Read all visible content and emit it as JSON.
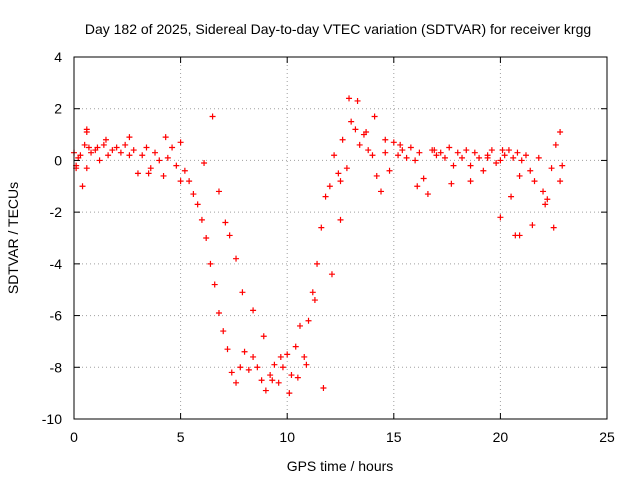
{
  "chart_data": {
    "type": "scatter",
    "title": "Day 182 of 2025, Sidereal Day-to-day VTEC variation (SDTVAR) for receiver krgg",
    "xlabel": "GPS time / hours",
    "ylabel": "SDTVAR / TECUs",
    "xlim": [
      0,
      25
    ],
    "ylim": [
      -10,
      4
    ],
    "xticks": [
      0,
      5,
      10,
      15,
      20,
      25
    ],
    "yticks": [
      -10,
      -8,
      -6,
      -4,
      -2,
      0,
      2,
      4
    ],
    "grid": true,
    "legend": "none",
    "marker": "+",
    "series_color": "#ff0000",
    "series": [
      {
        "name": "SDTVAR",
        "x": [
          0.0,
          0.1,
          0.2,
          0.3,
          0.5,
          0.6,
          0.7,
          0.8,
          1.0,
          1.2,
          1.4,
          1.6,
          1.8,
          2.0,
          2.2,
          2.4,
          2.6,
          2.8,
          3.0,
          3.2,
          3.4,
          3.6,
          3.8,
          4.0,
          4.2,
          4.4,
          4.6,
          4.8,
          5.0,
          5.2,
          5.4,
          5.6,
          5.8,
          6.0,
          6.2,
          6.4,
          6.6,
          6.8,
          7.0,
          7.2,
          7.4,
          7.6,
          7.8,
          8.0,
          8.2,
          8.4,
          8.6,
          8.8,
          9.0,
          9.2,
          9.4,
          9.6,
          9.8,
          10.0,
          10.2,
          10.4,
          10.6,
          10.8,
          11.0,
          11.2,
          11.4,
          11.6,
          11.8,
          12.0,
          12.2,
          12.4,
          12.6,
          12.8,
          13.0,
          13.2,
          13.4,
          13.6,
          13.8,
          14.0,
          14.2,
          14.4,
          14.6,
          14.8,
          15.0,
          15.2,
          15.4,
          15.6,
          15.8,
          16.0,
          16.2,
          16.4,
          16.6,
          16.8,
          17.0,
          17.2,
          17.4,
          17.6,
          17.8,
          18.0,
          18.2,
          18.4,
          18.6,
          18.8,
          19.0,
          19.2,
          19.4,
          19.6,
          19.8,
          20.0,
          20.2,
          20.4,
          20.6,
          20.8,
          21.0,
          21.2,
          21.4,
          21.6,
          21.8,
          22.0,
          22.2,
          22.4,
          22.6,
          22.8,
          0.1,
          0.4,
          0.6,
          1.1,
          1.5,
          2.6,
          3.5,
          4.3,
          5.0,
          6.1,
          6.5,
          6.8,
          7.1,
          7.3,
          7.6,
          7.9,
          8.4,
          8.9,
          9.3,
          9.7,
          10.1,
          10.5,
          10.9,
          11.3,
          11.7,
          12.1,
          12.5,
          12.5,
          12.9,
          13.3,
          13.7,
          14.1,
          14.6,
          15.3,
          16.1,
          16.9,
          17.7,
          18.6,
          19.4,
          20.1,
          20.5,
          20.9,
          21.5,
          22.1,
          22.5,
          22.9,
          20.0,
          20.7,
          20.9,
          22.8,
          0.6
        ],
        "y": [
          0.3,
          -0.3,
          0.1,
          0.2,
          0.6,
          1.1,
          0.5,
          0.3,
          0.4,
          0.0,
          0.6,
          0.2,
          0.4,
          0.5,
          0.3,
          0.6,
          0.9,
          0.4,
          -0.5,
          0.2,
          0.5,
          -0.3,
          0.3,
          0.0,
          -0.6,
          0.1,
          0.5,
          -0.2,
          -0.8,
          -0.4,
          -0.8,
          -1.3,
          -1.7,
          -2.3,
          -3.0,
          -4.0,
          -4.8,
          -5.9,
          -6.6,
          -7.3,
          -8.2,
          -8.6,
          -8.0,
          -7.4,
          -8.1,
          -7.6,
          -8.0,
          -8.5,
          -8.9,
          -8.3,
          -7.9,
          -8.6,
          -8.0,
          -7.5,
          -8.3,
          -7.2,
          -6.4,
          -7.6,
          -6.2,
          -5.1,
          -4.0,
          -2.6,
          -1.4,
          -1.0,
          0.2,
          -0.5,
          0.8,
          -0.3,
          1.5,
          1.2,
          0.6,
          1.0,
          0.4,
          0.2,
          -0.6,
          -1.2,
          0.3,
          -0.4,
          0.7,
          0.2,
          0.4,
          0.1,
          0.5,
          0.0,
          0.3,
          -0.7,
          -1.3,
          0.4,
          0.2,
          0.3,
          0.1,
          0.5,
          -0.2,
          0.3,
          0.1,
          0.4,
          -0.2,
          0.3,
          0.1,
          -0.4,
          0.2,
          0.4,
          -0.1,
          0.0,
          0.2,
          0.4,
          0.1,
          0.3,
          0.0,
          0.2,
          -0.4,
          -0.8,
          0.1,
          -1.2,
          -1.5,
          -0.3,
          0.6,
          -0.8,
          -0.2,
          -1.0,
          -0.3,
          0.5,
          0.8,
          0.2,
          -0.5,
          0.9,
          0.7,
          -0.1,
          1.7,
          -1.2,
          -2.4,
          -2.9,
          -3.8,
          -5.1,
          -5.8,
          -6.8,
          -8.5,
          -7.6,
          -9.0,
          -8.4,
          -7.9,
          -5.4,
          -8.8,
          -4.4,
          -2.3,
          -0.8,
          2.4,
          2.3,
          1.1,
          1.7,
          0.8,
          0.6,
          -1.0,
          0.4,
          -0.9,
          -0.8,
          0.1,
          0.4,
          -1.4,
          -0.6,
          -2.5,
          -1.7,
          -2.6,
          -0.2,
          -2.2,
          -2.9,
          -2.9,
          1.1,
          1.2
        ]
      }
    ]
  }
}
